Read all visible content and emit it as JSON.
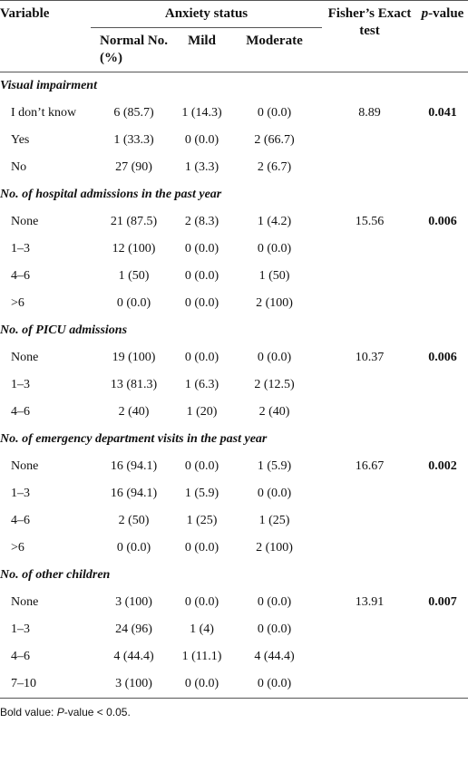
{
  "header": {
    "variable": "Variable",
    "anxiety_status": "Anxiety status",
    "fisher": "Fisher’s Exact test",
    "p_italic": "p",
    "p_rest": "-value",
    "normal": "Normal No. (%)",
    "mild": "Mild",
    "moderate": "Moderate"
  },
  "sections": [
    {
      "title": "Visual impairment",
      "fisher": "8.89",
      "p_value": "0.041",
      "rows": [
        [
          "I don’t know",
          "6 (85.7)",
          "1 (14.3)",
          "0 (0.0)"
        ],
        [
          "Yes",
          "1 (33.3)",
          "0 (0.0)",
          "2 (66.7)"
        ],
        [
          "No",
          "27 (90)",
          "1 (3.3)",
          "2 (6.7)"
        ]
      ]
    },
    {
      "title": "No. of hospital admissions in the past year",
      "fisher": "15.56",
      "p_value": "0.006",
      "rows": [
        [
          "None",
          "21 (87.5)",
          "2 (8.3)",
          "1 (4.2)"
        ],
        [
          "1–3",
          "12 (100)",
          "0 (0.0)",
          "0 (0.0)"
        ],
        [
          "4–6",
          "1 (50)",
          "0 (0.0)",
          "1 (50)"
        ],
        [
          ">6",
          "0 (0.0)",
          "0 (0.0)",
          "2 (100)"
        ]
      ]
    },
    {
      "title": "No. of PICU admissions",
      "fisher": "10.37",
      "p_value": "0.006",
      "rows": [
        [
          "None",
          "19 (100)",
          "0 (0.0)",
          "0 (0.0)"
        ],
        [
          "1–3",
          "13 (81.3)",
          "1 (6.3)",
          "2 (12.5)"
        ],
        [
          "4–6",
          "2 (40)",
          "1 (20)",
          "2 (40)"
        ]
      ]
    },
    {
      "title": "No. of emergency department visits in the past year",
      "fisher": "16.67",
      "p_value": "0.002",
      "rows": [
        [
          "None",
          "16 (94.1)",
          "0 (0.0)",
          "1 (5.9)"
        ],
        [
          "1–3",
          "16 (94.1)",
          "1 (5.9)",
          "0 (0.0)"
        ],
        [
          "4–6",
          "2 (50)",
          "1 (25)",
          "1 (25)"
        ],
        [
          ">6",
          "0 (0.0)",
          "0 (0.0)",
          "2 (100)"
        ]
      ]
    },
    {
      "title": "No. of other children",
      "fisher": "13.91",
      "p_value": "0.007",
      "rows": [
        [
          "None",
          "3 (100)",
          "0 (0.0)",
          "0 (0.0)"
        ],
        [
          "1–3",
          "24 (96)",
          "1 (4)",
          "0 (0.0)"
        ],
        [
          "4–6",
          "4 (44.4)",
          "1 (11.1)",
          "4 (44.4)"
        ],
        [
          "7–10",
          "3 (100)",
          "0 (0.0)",
          "0 (0.0)"
        ]
      ]
    }
  ],
  "footnote": {
    "prefix": "Bold value: ",
    "italic": "P",
    "suffix": "-value < 0.05."
  }
}
